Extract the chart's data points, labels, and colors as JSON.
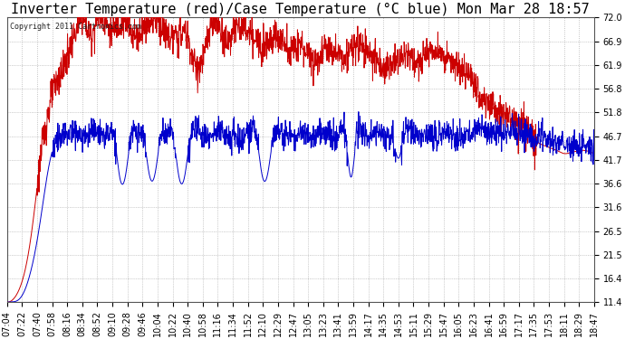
{
  "title": "Inverter Temperature (red)/Case Temperature (°C blue) Mon Mar 28 18:57",
  "copyright": "Copyright 2011 Cartronics.com",
  "ymin": 11.4,
  "ymax": 72.0,
  "yticks": [
    11.4,
    16.4,
    21.5,
    26.5,
    31.6,
    36.6,
    41.7,
    46.7,
    51.8,
    56.8,
    61.9,
    66.9,
    72.0
  ],
  "xtick_labels": [
    "07:04",
    "07:22",
    "07:40",
    "07:58",
    "08:16",
    "08:34",
    "08:52",
    "09:10",
    "09:28",
    "09:46",
    "10:04",
    "10:22",
    "10:40",
    "10:58",
    "11:16",
    "11:34",
    "11:52",
    "12:10",
    "12:29",
    "12:47",
    "13:05",
    "13:23",
    "13:41",
    "13:59",
    "14:17",
    "14:35",
    "14:53",
    "15:11",
    "15:29",
    "15:47",
    "16:05",
    "16:23",
    "16:41",
    "16:59",
    "17:17",
    "17:35",
    "17:53",
    "18:11",
    "18:29",
    "18:47"
  ],
  "bg_color": "#ffffff",
  "plot_bg_color": "#ffffff",
  "grid_color": "#aaaaaa",
  "red_line_color": "#cc0000",
  "blue_line_color": "#0000cc",
  "title_fontsize": 11,
  "tick_fontsize": 7.0,
  "red_data": [
    11.4,
    12.0,
    14.0,
    18.0,
    25.0,
    35.0,
    45.0,
    52.0,
    57.0,
    60.0,
    63.0,
    67.0,
    70.0,
    71.5,
    68.0,
    71.0,
    72.0,
    70.0,
    69.0,
    71.0,
    70.5,
    69.0,
    68.0,
    70.0,
    71.0,
    72.0,
    70.0,
    68.0,
    67.5,
    68.0,
    69.0,
    65.0,
    61.0,
    63.0,
    68.0,
    71.0,
    69.0,
    67.0,
    68.5,
    70.0,
    69.5,
    68.0,
    67.0,
    66.5,
    67.0,
    68.0,
    67.5,
    66.0,
    65.0,
    66.0,
    65.5,
    64.0,
    63.0,
    64.5,
    66.0,
    65.0,
    64.0,
    63.5,
    65.0,
    66.0,
    65.5,
    64.5,
    63.0,
    62.0,
    61.0,
    62.0,
    63.0,
    64.0,
    63.5,
    62.0,
    63.0,
    64.0,
    65.0,
    64.5,
    63.0,
    62.5,
    61.0,
    60.0,
    59.0,
    57.0,
    55.0,
    54.0,
    53.0,
    52.0,
    51.0,
    50.5,
    50.0,
    49.0,
    48.0,
    46.0,
    45.0,
    44.5,
    44.0,
    43.5,
    43.0,
    43.2,
    43.5,
    43.7,
    43.5,
    43.0
  ],
  "blue_data": [
    11.4,
    11.5,
    12.0,
    14.0,
    18.0,
    24.0,
    32.0,
    40.0,
    45.0,
    47.0,
    47.5,
    48.0,
    47.0,
    46.5,
    47.5,
    48.0,
    47.0,
    46.5,
    47.0,
    38.0,
    38.5,
    47.0,
    47.5,
    46.5,
    38.5,
    39.0,
    47.0,
    47.5,
    46.5,
    38.0,
    38.5,
    47.0,
    47.5,
    47.0,
    46.0,
    47.0,
    48.0,
    46.5,
    47.0,
    46.5,
    47.0,
    47.5,
    47.0,
    38.5,
    39.0,
    47.0,
    47.5,
    47.0,
    46.5,
    47.0,
    47.5,
    46.5,
    47.0,
    47.5,
    47.0,
    46.5,
    47.0,
    47.5,
    38.0,
    47.0,
    47.5,
    46.5,
    47.0,
    47.5,
    47.0,
    46.5,
    42.0,
    47.0,
    47.5,
    46.5,
    47.0,
    47.5,
    46.5,
    47.0,
    47.5,
    47.0,
    46.5,
    47.0,
    47.5,
    48.0,
    48.5,
    48.0,
    47.5,
    47.0,
    47.5,
    48.0,
    47.5,
    47.0,
    46.5,
    46.0,
    46.5,
    46.0,
    45.5,
    45.0,
    44.5,
    44.5,
    44.8,
    44.5,
    44.2,
    44.0
  ]
}
